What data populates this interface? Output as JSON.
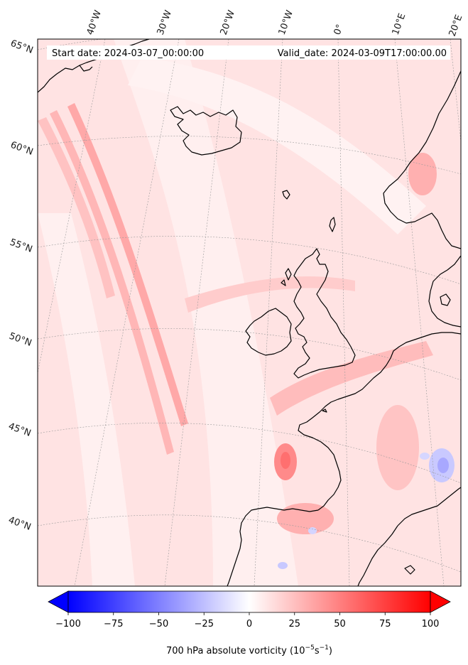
{
  "header": {
    "start_label": "Start date: 2024-03-07_00:00:00",
    "valid_label": "Valid_date: 2024-03-09T17:00:00.00"
  },
  "longitude_labels": [
    "40°W",
    "30°W",
    "20°W",
    "10°W",
    "0°",
    "10°E",
    "20°E"
  ],
  "latitude_labels": [
    "65°N",
    "60°N",
    "55°N",
    "50°N",
    "45°N",
    "40°N"
  ],
  "colorbar": {
    "ticks": [
      "−100",
      "−75",
      "−50",
      "−25",
      "0",
      "25",
      "50",
      "75",
      "100"
    ],
    "min": -100,
    "max": 100,
    "low_color": "#0000ff",
    "mid_color": "#ffffff",
    "high_color": "#ff0000",
    "extend": "both",
    "label_main": "700 hPa absolute vorticity (10",
    "label_exp1": "−5",
    "label_mid": "s",
    "label_exp2": "−1",
    "label_end": ")"
  },
  "colors": {
    "coastline": "#000000",
    "graticule": "#9a9a9a",
    "background_field": "#ffe6e6"
  }
}
